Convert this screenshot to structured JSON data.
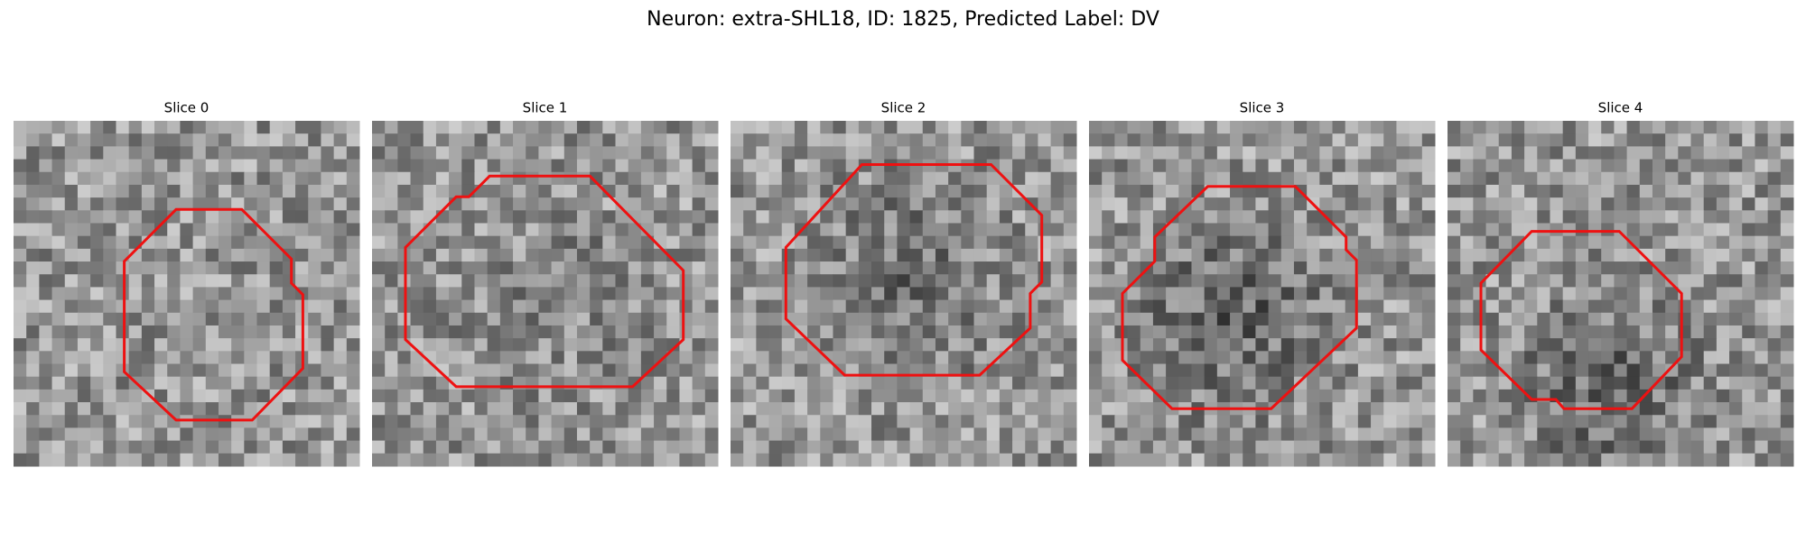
{
  "header": {
    "title": "Neuron: extra-SHL18, ID: 1825, Predicted Label: DV"
  },
  "panels": [
    {
      "title": "Slice 0"
    },
    {
      "title": "Slice 1"
    },
    {
      "title": "Slice 2"
    },
    {
      "title": "Slice 3"
    },
    {
      "title": "Slice 4"
    }
  ]
}
